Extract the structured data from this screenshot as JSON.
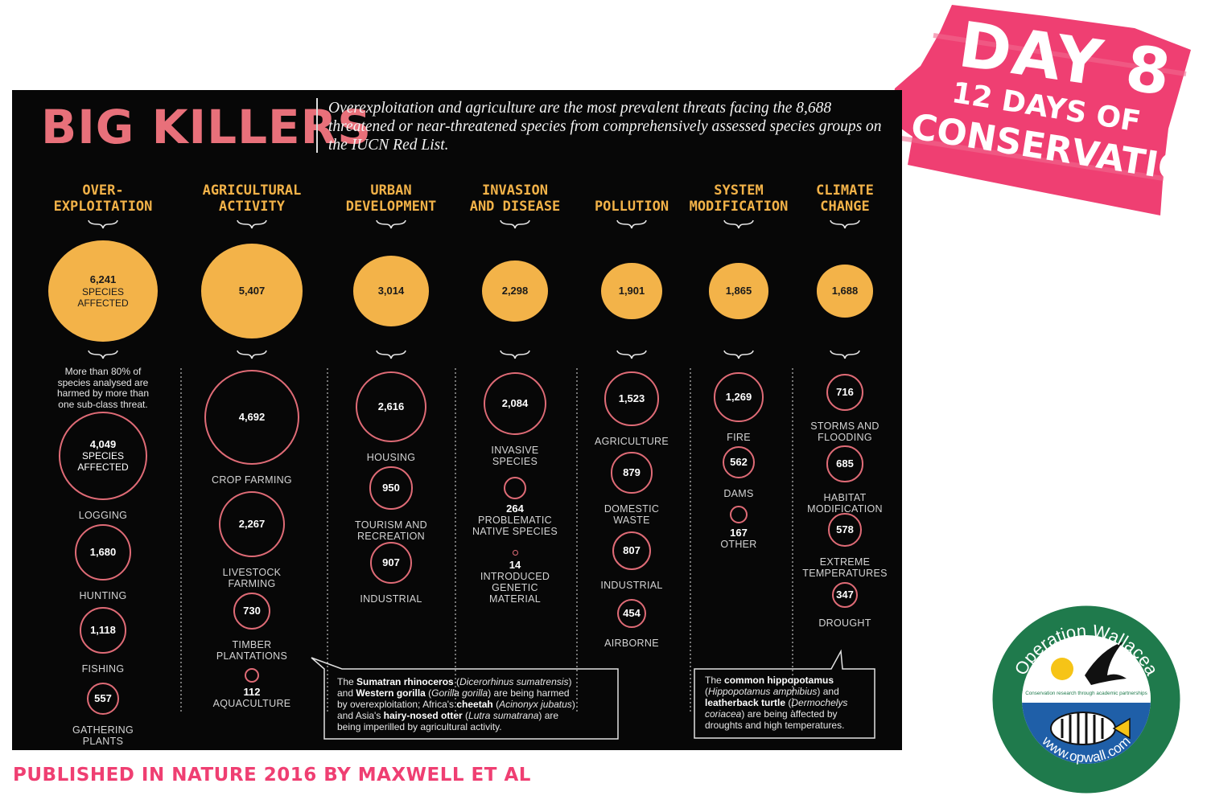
{
  "title": "BIG KILLERS",
  "intro": "Overexploitation and agriculture are the most prevalent threats facing the 8,688 threatened or near-threatened species from comprehensively assessed species groups on the IUCN Red List.",
  "colors": {
    "panel": "#070707",
    "main_circle": "#f3b349",
    "sub_circle_stroke": "#df6b76",
    "heading": "#f2b248",
    "title": "#e8707a",
    "banner": "#ef3f72"
  },
  "columns": [
    {
      "heading": [
        "OVER-",
        "EXPLOITATION"
      ],
      "value": 6241,
      "value_text": "6,241",
      "unit": [
        "SPECIES",
        "AFFECTED"
      ],
      "note": [
        "More than 80% of",
        "species analysed are",
        "harmed by more than",
        "one sub-class threat."
      ],
      "subs": [
        {
          "value": 4049,
          "value_text": "4,049",
          "unit": [
            "SPECIES",
            "AFFECTED"
          ],
          "label": [
            "LOGGING"
          ]
        },
        {
          "value": 1680,
          "value_text": "1,680",
          "label": [
            "HUNTING"
          ]
        },
        {
          "value": 1118,
          "value_text": "1,118",
          "label": [
            "FISHING"
          ]
        },
        {
          "value": 557,
          "value_text": "557",
          "label": [
            "GATHERING",
            "PLANTS"
          ]
        }
      ]
    },
    {
      "heading": [
        "AGRICULTURAL",
        "ACTIVITY"
      ],
      "value": 5407,
      "value_text": "5,407",
      "subs": [
        {
          "value": 4692,
          "value_text": "4,692",
          "label": [
            "CROP FARMING"
          ]
        },
        {
          "value": 2267,
          "value_text": "2,267",
          "label": [
            "LIVESTOCK",
            "FARMING"
          ]
        },
        {
          "value": 730,
          "value_text": "730",
          "label": [
            "TIMBER",
            "PLANTATIONS"
          ]
        },
        {
          "value": 112,
          "value_text": "112",
          "value_outside": true,
          "label": [
            "AQUACULTURE"
          ]
        }
      ]
    },
    {
      "heading": [
        "URBAN",
        "DEVELOPMENT"
      ],
      "value": 3014,
      "value_text": "3,014",
      "subs": [
        {
          "value": 2616,
          "value_text": "2,616",
          "label": [
            "HOUSING"
          ]
        },
        {
          "value": 950,
          "value_text": "950",
          "label": [
            "TOURISM AND",
            "RECREATION"
          ]
        },
        {
          "value": 907,
          "value_text": "907",
          "label": [
            "INDUSTRIAL"
          ]
        }
      ]
    },
    {
      "heading": [
        "INVASION",
        "AND DISEASE"
      ],
      "value": 2298,
      "value_text": "2,298",
      "subs": [
        {
          "value": 2084,
          "value_text": "2,084",
          "label": [
            "INVASIVE",
            "SPECIES"
          ]
        },
        {
          "value": 264,
          "value_text": "264",
          "value_outside": true,
          "label": [
            "PROBLEMATIC",
            "NATIVE SPECIES"
          ]
        },
        {
          "value": 14,
          "value_text": "14",
          "value_outside": true,
          "label": [
            "INTRODUCED",
            "GENETIC",
            "MATERIAL"
          ]
        }
      ]
    },
    {
      "heading": [
        "POLLUTION"
      ],
      "value": 1901,
      "value_text": "1,901",
      "subs": [
        {
          "value": 1523,
          "value_text": "1,523",
          "label": [
            "AGRICULTURE"
          ]
        },
        {
          "value": 879,
          "value_text": "879",
          "label": [
            "DOMESTIC",
            "WASTE"
          ]
        },
        {
          "value": 807,
          "value_text": "807",
          "label": [
            "INDUSTRIAL"
          ]
        },
        {
          "value": 454,
          "value_text": "454",
          "label": [
            "AIRBORNE"
          ]
        }
      ]
    },
    {
      "heading": [
        "SYSTEM",
        "MODIFICATION"
      ],
      "value": 1865,
      "value_text": "1,865",
      "subs": [
        {
          "value": 1269,
          "value_text": "1,269",
          "label": [
            "FIRE"
          ]
        },
        {
          "value": 562,
          "value_text": "562",
          "label": [
            "DAMS"
          ]
        },
        {
          "value": 167,
          "value_text": "167",
          "value_outside": true,
          "label": [
            "OTHER"
          ]
        }
      ]
    },
    {
      "heading": [
        "CLIMATE",
        "CHANGE"
      ],
      "value": 1688,
      "value_text": "1,688",
      "subs": [
        {
          "value": 716,
          "value_text": "716",
          "label": [
            "STORMS AND",
            "FLOODING"
          ]
        },
        {
          "value": 685,
          "value_text": "685",
          "label": [
            "HABITAT",
            "MODIFICATION"
          ]
        },
        {
          "value": 578,
          "value_text": "578",
          "label": [
            "EXTREME",
            "TEMPERATURES"
          ]
        },
        {
          "value": 347,
          "value_text": "347",
          "label": [
            "DROUGHT"
          ]
        }
      ]
    }
  ],
  "callout_left": {
    "lines": [
      [
        {
          "t": "The "
        },
        {
          "t": "Sumatran rhinoceros",
          "b": true
        },
        {
          "t": " ("
        },
        {
          "t": "Dicerorhinus sumatrensis",
          "i": true
        },
        {
          "t": ")"
        }
      ],
      [
        {
          "t": "and "
        },
        {
          "t": "Western gorilla",
          "b": true
        },
        {
          "t": " ("
        },
        {
          "t": "Gorilla gorilla",
          "i": true
        },
        {
          "t": ") are being harmed"
        }
      ],
      [
        {
          "t": "by overexploitation; Africa's "
        },
        {
          "t": "cheetah",
          "b": true
        },
        {
          "t": " ("
        },
        {
          "t": "Acinonyx jubatus",
          "i": true
        },
        {
          "t": ")"
        }
      ],
      [
        {
          "t": "and Asia's "
        },
        {
          "t": "hairy-nosed otter",
          "b": true
        },
        {
          "t": " ("
        },
        {
          "t": "Lutra sumatrana",
          "i": true
        },
        {
          "t": ") are"
        }
      ],
      [
        {
          "t": "being imperilled by agricultural activity."
        }
      ]
    ]
  },
  "callout_right": {
    "lines": [
      [
        {
          "t": "The "
        },
        {
          "t": "common hippopotamus",
          "b": true
        }
      ],
      [
        {
          "t": "("
        },
        {
          "t": "Hippopotamus amphibius",
          "i": true
        },
        {
          "t": ") and"
        }
      ],
      [
        {
          "t": "leatherback turtle",
          "b": true
        },
        {
          "t": " ("
        },
        {
          "t": "Dermochelys",
          "i": true
        }
      ],
      [
        {
          "t": "coriacea",
          "i": true
        },
        {
          "t": ") are being affected by"
        }
      ],
      [
        {
          "t": "droughts and high temperatures."
        }
      ]
    ]
  },
  "banner": {
    "day": "DAY 8",
    "line1": "12 DAYS OF",
    "line2": "CONSERVATION"
  },
  "credit": "PUBLISHED IN NATURE 2016 BY MAXWELL ET AL",
  "logo": {
    "top_text": "Operation Wallacea",
    "tagline": "Conservation research through academic partnerships",
    "url": "www.opwall.com",
    "icons": [
      "sun-icon",
      "bird-icon",
      "fish-icon"
    ]
  }
}
